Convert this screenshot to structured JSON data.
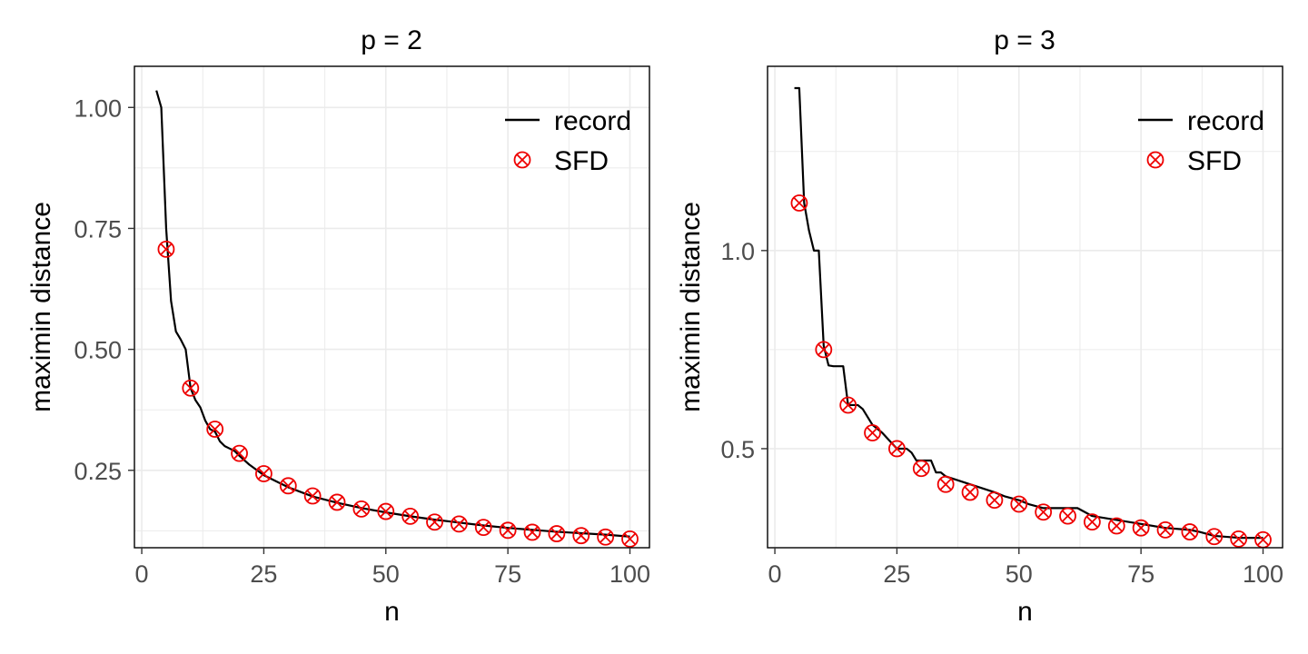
{
  "chart_data": [
    {
      "type": "line",
      "title": "p = 2",
      "xlabel": "n",
      "ylabel": "maximin distance",
      "xlim": [
        -1.5,
        104
      ],
      "ylim": [
        0.09,
        1.085
      ],
      "x_ticks": [
        0,
        25,
        50,
        75,
        100
      ],
      "x_tick_labels": [
        "0",
        "25",
        "50",
        "75",
        "100"
      ],
      "y_ticks": [
        0.25,
        0.5,
        0.75,
        1.0
      ],
      "y_tick_labels": [
        "0.25",
        "0.50",
        "0.75",
        "1.00"
      ],
      "grid": true,
      "legend": {
        "position": "top-right",
        "entries": [
          "record",
          "SFD"
        ]
      },
      "series": [
        {
          "name": "record",
          "kind": "line",
          "color": "#000000",
          "x": [
            3,
            4,
            5,
            6,
            7,
            8,
            9,
            10,
            11,
            12,
            13,
            14,
            15,
            16,
            17,
            18,
            19,
            20,
            22,
            25,
            28,
            30,
            35,
            40,
            45,
            50,
            55,
            60,
            65,
            70,
            75,
            80,
            85,
            90,
            95,
            100
          ],
          "y": [
            1.035,
            1.0,
            0.75,
            0.6,
            0.537,
            0.52,
            0.5,
            0.42,
            0.395,
            0.38,
            0.353,
            0.335,
            0.33,
            0.31,
            0.3,
            0.295,
            0.29,
            0.28,
            0.262,
            0.24,
            0.225,
            0.215,
            0.196,
            0.183,
            0.172,
            0.163,
            0.155,
            0.148,
            0.142,
            0.136,
            0.131,
            0.127,
            0.123,
            0.12,
            0.117,
            0.113
          ]
        },
        {
          "name": "SFD",
          "kind": "point",
          "color": "#ee0000",
          "x": [
            5,
            10,
            15,
            20,
            25,
            30,
            35,
            40,
            45,
            50,
            55,
            60,
            65,
            70,
            75,
            80,
            85,
            90,
            95,
            100
          ],
          "y": [
            0.707,
            0.42,
            0.335,
            0.285,
            0.243,
            0.218,
            0.197,
            0.184,
            0.17,
            0.165,
            0.155,
            0.143,
            0.139,
            0.132,
            0.126,
            0.122,
            0.119,
            0.115,
            0.112,
            0.108
          ]
        }
      ]
    },
    {
      "type": "line",
      "title": "p = 3",
      "xlabel": "n",
      "ylabel": "maximin distance",
      "xlim": [
        -1.5,
        104
      ],
      "ylim": [
        0.25,
        1.465
      ],
      "x_ticks": [
        0,
        25,
        50,
        75,
        100
      ],
      "x_tick_labels": [
        "0",
        "25",
        "50",
        "75",
        "100"
      ],
      "y_ticks": [
        0.5,
        1.0
      ],
      "y_tick_labels": [
        "0.5",
        "1.0"
      ],
      "grid": true,
      "legend": {
        "position": "top-right",
        "entries": [
          "record",
          "SFD"
        ]
      },
      "series": [
        {
          "name": "record",
          "kind": "line",
          "color": "#000000",
          "x": [
            4,
            5,
            6,
            7,
            8,
            9,
            10,
            11,
            12,
            13,
            14,
            15,
            16,
            17,
            18,
            20,
            22,
            25,
            27,
            28,
            29,
            30,
            32,
            33,
            34,
            35,
            40,
            45,
            47,
            50,
            52,
            55,
            60,
            62,
            65,
            70,
            75,
            80,
            85,
            87,
            90,
            95,
            100
          ],
          "y": [
            1.41,
            1.41,
            1.12,
            1.05,
            1.0,
            1.0,
            0.76,
            0.71,
            0.708,
            0.708,
            0.708,
            0.61,
            0.61,
            0.61,
            0.6,
            0.56,
            0.54,
            0.5,
            0.5,
            0.49,
            0.47,
            0.47,
            0.47,
            0.44,
            0.44,
            0.43,
            0.41,
            0.39,
            0.38,
            0.37,
            0.36,
            0.35,
            0.35,
            0.35,
            0.33,
            0.32,
            0.31,
            0.3,
            0.295,
            0.29,
            0.28,
            0.275,
            0.275
          ]
        },
        {
          "name": "SFD",
          "kind": "point",
          "color": "#ee0000",
          "x": [
            5,
            10,
            15,
            20,
            25,
            30,
            35,
            40,
            45,
            50,
            55,
            60,
            65,
            70,
            75,
            80,
            85,
            90,
            95,
            100
          ],
          "y": [
            1.12,
            0.75,
            0.61,
            0.54,
            0.5,
            0.45,
            0.41,
            0.39,
            0.37,
            0.36,
            0.34,
            0.33,
            0.315,
            0.305,
            0.3,
            0.295,
            0.29,
            0.278,
            0.272,
            0.27
          ]
        }
      ]
    }
  ]
}
